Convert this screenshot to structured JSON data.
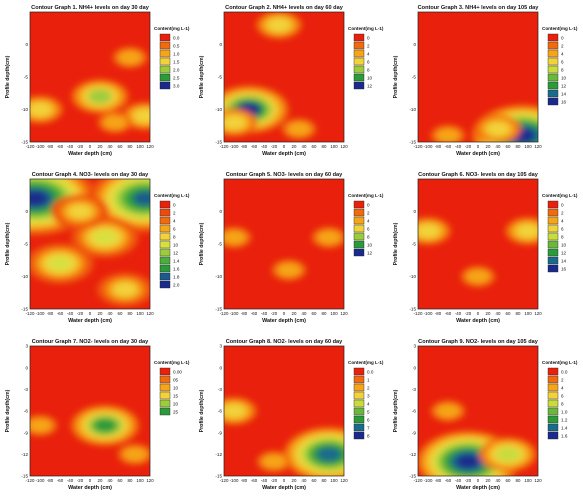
{
  "chart_data": [
    {
      "type": "heatmap",
      "title": "Contour Graph 1. NH4+ levels on day 30 day",
      "xlabel": "Water depth (cm)",
      "ylabel": "Profile depth(cm)",
      "xlim": [
        -120,
        120
      ],
      "ylim": [
        -15,
        5
      ],
      "x_ticks": [
        "-120",
        "-100",
        "-80",
        "-60",
        "-40",
        "-20",
        "0",
        "20",
        "40",
        "60",
        "80",
        "100",
        "120"
      ],
      "y_ticks": [
        "0",
        "-5",
        "-10",
        "-15"
      ],
      "legend_title": "Content(mg L-1)",
      "legend_levels": [
        "0.0",
        "0.5",
        "1.0",
        "1.5",
        "2.0",
        "2.5",
        "3.0"
      ],
      "colors": [
        "#e8200c",
        "#f26a0e",
        "#f6a418",
        "#f2d23a",
        "#9ccc3c",
        "#2a9a3a",
        "#1a2a8c"
      ],
      "hotspots": [
        {
          "x": 20,
          "y": -8,
          "level": 4
        },
        {
          "x": -100,
          "y": -10,
          "level": 3
        },
        {
          "x": 110,
          "y": -11,
          "level": 3
        },
        {
          "x": 80,
          "y": -2,
          "level": 2
        },
        {
          "x": 50,
          "y": -12,
          "level": 2
        }
      ]
    },
    {
      "type": "heatmap",
      "title": "Contour Graph 2. NH4+ levels on day 60 day",
      "xlabel": "Water depth (cm)",
      "ylabel": "Profile depth(cm)",
      "xlim": [
        -120,
        120
      ],
      "ylim": [
        -15,
        5
      ],
      "x_ticks": [
        "-120",
        "-100",
        "-80",
        "-60",
        "-40",
        "-20",
        "0",
        "20",
        "40",
        "60",
        "80",
        "100",
        "120"
      ],
      "y_ticks": [
        "0",
        "-5",
        "-10",
        "-15"
      ],
      "legend_title": "Content(mg L-1)",
      "legend_levels": [
        "0",
        "2",
        "4",
        "6",
        "8",
        "10",
        "12"
      ],
      "colors": [
        "#e8200c",
        "#f26a0e",
        "#f6a418",
        "#f2d23a",
        "#9ccc3c",
        "#2a9a3a",
        "#1a2a8c"
      ],
      "hotspots": [
        {
          "x": -70,
          "y": -10,
          "level": 6
        },
        {
          "x": -100,
          "y": -12,
          "level": 3
        },
        {
          "x": -10,
          "y": 3,
          "level": 3
        },
        {
          "x": 30,
          "y": -13,
          "level": 2
        }
      ]
    },
    {
      "type": "heatmap",
      "title": "Contour Graph 3. NH4+ levels on day 105 day",
      "xlabel": "Water depth (cm)",
      "ylabel": "Profile depth(cm)",
      "xlim": [
        -120,
        120
      ],
      "ylim": [
        -15,
        5
      ],
      "x_ticks": [
        "-120",
        "-100",
        "-80",
        "-60",
        "-40",
        "-20",
        "0",
        "20",
        "40",
        "60",
        "80",
        "100",
        "120"
      ],
      "y_ticks": [
        "0",
        "-5",
        "-10",
        "-15"
      ],
      "legend_title": "Content(mg L-1)",
      "legend_levels": [
        "0",
        "2",
        "4",
        "6",
        "8",
        "10",
        "12",
        "14",
        "16"
      ],
      "colors": [
        "#e8200c",
        "#f26a0e",
        "#f6a418",
        "#f2d23a",
        "#c8dc3c",
        "#6ab83a",
        "#2a9a3a",
        "#1a6a8c",
        "#1a2a8c"
      ],
      "hotspots": [
        {
          "x": 90,
          "y": -14,
          "level": 8
        },
        {
          "x": 40,
          "y": -13,
          "level": 3
        },
        {
          "x": -60,
          "y": -14,
          "level": 2
        }
      ]
    },
    {
      "type": "heatmap",
      "title": "Contour Graph 4. NO3- levels on day 30 day",
      "xlabel": "Water depth (cm)",
      "ylabel": "Profile depth(cm)",
      "xlim": [
        -120,
        120
      ],
      "ylim": [
        -15,
        5
      ],
      "x_ticks": [
        "-120",
        "-100",
        "-80",
        "-60",
        "-40",
        "-20",
        "0",
        "20",
        "40",
        "60",
        "80",
        "100",
        "120"
      ],
      "y_ticks": [
        "0",
        "-5",
        "-10",
        "-15"
      ],
      "legend_title": "Content(mg L-1)",
      "legend_levels": [
        "0",
        "2",
        "4",
        "6",
        "8",
        "10",
        "12",
        "1.4",
        "1.6",
        "1.8",
        "2.0"
      ],
      "colors": [
        "#e8200c",
        "#ee4a0e",
        "#f26a0e",
        "#f6a418",
        "#f2d23a",
        "#d8e040",
        "#9ccc3c",
        "#4aae3a",
        "#2a9a3a",
        "#1a5a8c",
        "#1a2a8c"
      ],
      "hotspots": [
        {
          "x": -110,
          "y": 2,
          "level": 10
        },
        {
          "x": 110,
          "y": 2,
          "level": 9
        },
        {
          "x": -60,
          "y": -8,
          "level": 5
        },
        {
          "x": 30,
          "y": -4,
          "level": 5
        },
        {
          "x": 70,
          "y": -12,
          "level": 4
        },
        {
          "x": -20,
          "y": 0,
          "level": 4
        }
      ]
    },
    {
      "type": "heatmap",
      "title": "Contour Graph 5. NO3- levels on day 60 day",
      "xlabel": "Water depth (cm)",
      "ylabel": "Profile depth(cm)",
      "xlim": [
        -120,
        120
      ],
      "ylim": [
        -15,
        5
      ],
      "x_ticks": [
        "-120",
        "-100",
        "-80",
        "-60",
        "-40",
        "-20",
        "0",
        "20",
        "40",
        "60",
        "80",
        "100",
        "120"
      ],
      "y_ticks": [
        "0",
        "-5",
        "-10",
        "-15"
      ],
      "legend_title": "Content(mg L-1)",
      "legend_levels": [
        "0",
        "2",
        "4",
        "6",
        "8",
        "10",
        "12"
      ],
      "colors": [
        "#e8200c",
        "#f26a0e",
        "#f6a418",
        "#f2d23a",
        "#9ccc3c",
        "#2a9a3a",
        "#1a2a8c"
      ],
      "hotspots": [
        {
          "x": -100,
          "y": -4,
          "level": 2
        },
        {
          "x": 90,
          "y": -4,
          "level": 2
        },
        {
          "x": 10,
          "y": -9,
          "level": 2
        }
      ]
    },
    {
      "type": "heatmap",
      "title": "Contour Graph 6. NO3- levels on day 105 day",
      "xlabel": "Water depth (cm)",
      "ylabel": "Profile depth(cm)",
      "xlim": [
        -120,
        120
      ],
      "ylim": [
        -15,
        5
      ],
      "x_ticks": [
        "-120",
        "-100",
        "-80",
        "-60",
        "-40",
        "-20",
        "0",
        "20",
        "40",
        "60",
        "80",
        "100",
        "120"
      ],
      "y_ticks": [
        "0",
        "-5",
        "-10",
        "-15"
      ],
      "legend_title": "Content(mg L-1)",
      "legend_levels": [
        "0",
        "2",
        "4",
        "6",
        "8",
        "10",
        "12",
        "14",
        "16"
      ],
      "colors": [
        "#e8200c",
        "#f26a0e",
        "#f6a418",
        "#f2d23a",
        "#c8dc3c",
        "#6ab83a",
        "#2a9a3a",
        "#1a6a8c",
        "#1a2a8c"
      ],
      "hotspots": [
        {
          "x": -100,
          "y": -3,
          "level": 3
        },
        {
          "x": 100,
          "y": -3,
          "level": 3
        },
        {
          "x": 0,
          "y": -10,
          "level": 2
        }
      ]
    },
    {
      "type": "heatmap",
      "title": "Contour Graph 7. NO2- levels on day 30 day",
      "xlabel": "Water depth (cm)",
      "ylabel": "Profile depth(cm)",
      "xlim": [
        -120,
        120
      ],
      "ylim": [
        -15,
        3
      ],
      "x_ticks": [
        "-120",
        "-100",
        "-80",
        "-60",
        "-40",
        "-20",
        "0",
        "20",
        "40",
        "60",
        "80",
        "100",
        "120"
      ],
      "y_ticks": [
        "3",
        "0",
        "-3",
        "-6",
        "-9",
        "-12",
        "-15"
      ],
      "legend_title": "Content(mg L-1)",
      "legend_levels": [
        "0.00",
        "05",
        "10",
        "15",
        "20",
        "25"
      ],
      "colors": [
        "#e8200c",
        "#f26a0e",
        "#f6a418",
        "#f2d23a",
        "#9ccc3c",
        "#2a9a3a"
      ],
      "hotspots": [
        {
          "x": 30,
          "y": -8,
          "level": 5
        },
        {
          "x": -100,
          "y": -8,
          "level": 2
        },
        {
          "x": 90,
          "y": -12,
          "level": 2
        }
      ]
    },
    {
      "type": "heatmap",
      "title": "Contour Graph 8. NO2- levels on day 60 day",
      "xlabel": "Water depth (cm)",
      "ylabel": "Profile depth(cm)",
      "xlim": [
        -120,
        120
      ],
      "ylim": [
        -15,
        3
      ],
      "x_ticks": [
        "-120",
        "-100",
        "-80",
        "-60",
        "-40",
        "-20",
        "0",
        "20",
        "40",
        "60",
        "80",
        "100",
        "120"
      ],
      "y_ticks": [
        "3",
        "0",
        "-3",
        "-6",
        "-9",
        "-12",
        "-15"
      ],
      "legend_title": "Content(mg L-1)",
      "legend_levels": [
        "0.0",
        "1",
        "2",
        "3",
        "4",
        "5",
        "6",
        "7",
        "8"
      ],
      "colors": [
        "#e8200c",
        "#f26a0e",
        "#f6a418",
        "#f2d23a",
        "#c8dc3c",
        "#6ab83a",
        "#2a9a3a",
        "#1a6a8c",
        "#1a2a8c"
      ],
      "hotspots": [
        {
          "x": 90,
          "y": -12,
          "level": 7
        },
        {
          "x": -100,
          "y": -6,
          "level": 3
        },
        {
          "x": -20,
          "y": -13,
          "level": 2
        }
      ]
    },
    {
      "type": "heatmap",
      "title": "Contour Graph 9. NO2- levels on day 105 day",
      "xlabel": "Water depth (cm)",
      "ylabel": "Profile depth(cm)",
      "xlim": [
        -120,
        120
      ],
      "ylim": [
        -15,
        3
      ],
      "x_ticks": [
        "-120",
        "-100",
        "-80",
        "-60",
        "-40",
        "-20",
        "0",
        "20",
        "40",
        "60",
        "80",
        "100",
        "120"
      ],
      "y_ticks": [
        "3",
        "0",
        "-3",
        "-6",
        "-9",
        "-12",
        "-15"
      ],
      "legend_title": "Content(mg L-1)",
      "legend_levels": [
        "0.0",
        "2",
        "4",
        "6",
        "8",
        "1.0",
        "1.2",
        "1.4",
        "1.6"
      ],
      "colors": [
        "#e8200c",
        "#f26a0e",
        "#f6a418",
        "#f2d23a",
        "#c8dc3c",
        "#6ab83a",
        "#2a9a3a",
        "#1a6a8c",
        "#1a2a8c"
      ],
      "hotspots": [
        {
          "x": -20,
          "y": -13,
          "level": 8
        },
        {
          "x": 60,
          "y": -12,
          "level": 4
        },
        {
          "x": -60,
          "y": -6,
          "level": 2
        }
      ]
    }
  ]
}
